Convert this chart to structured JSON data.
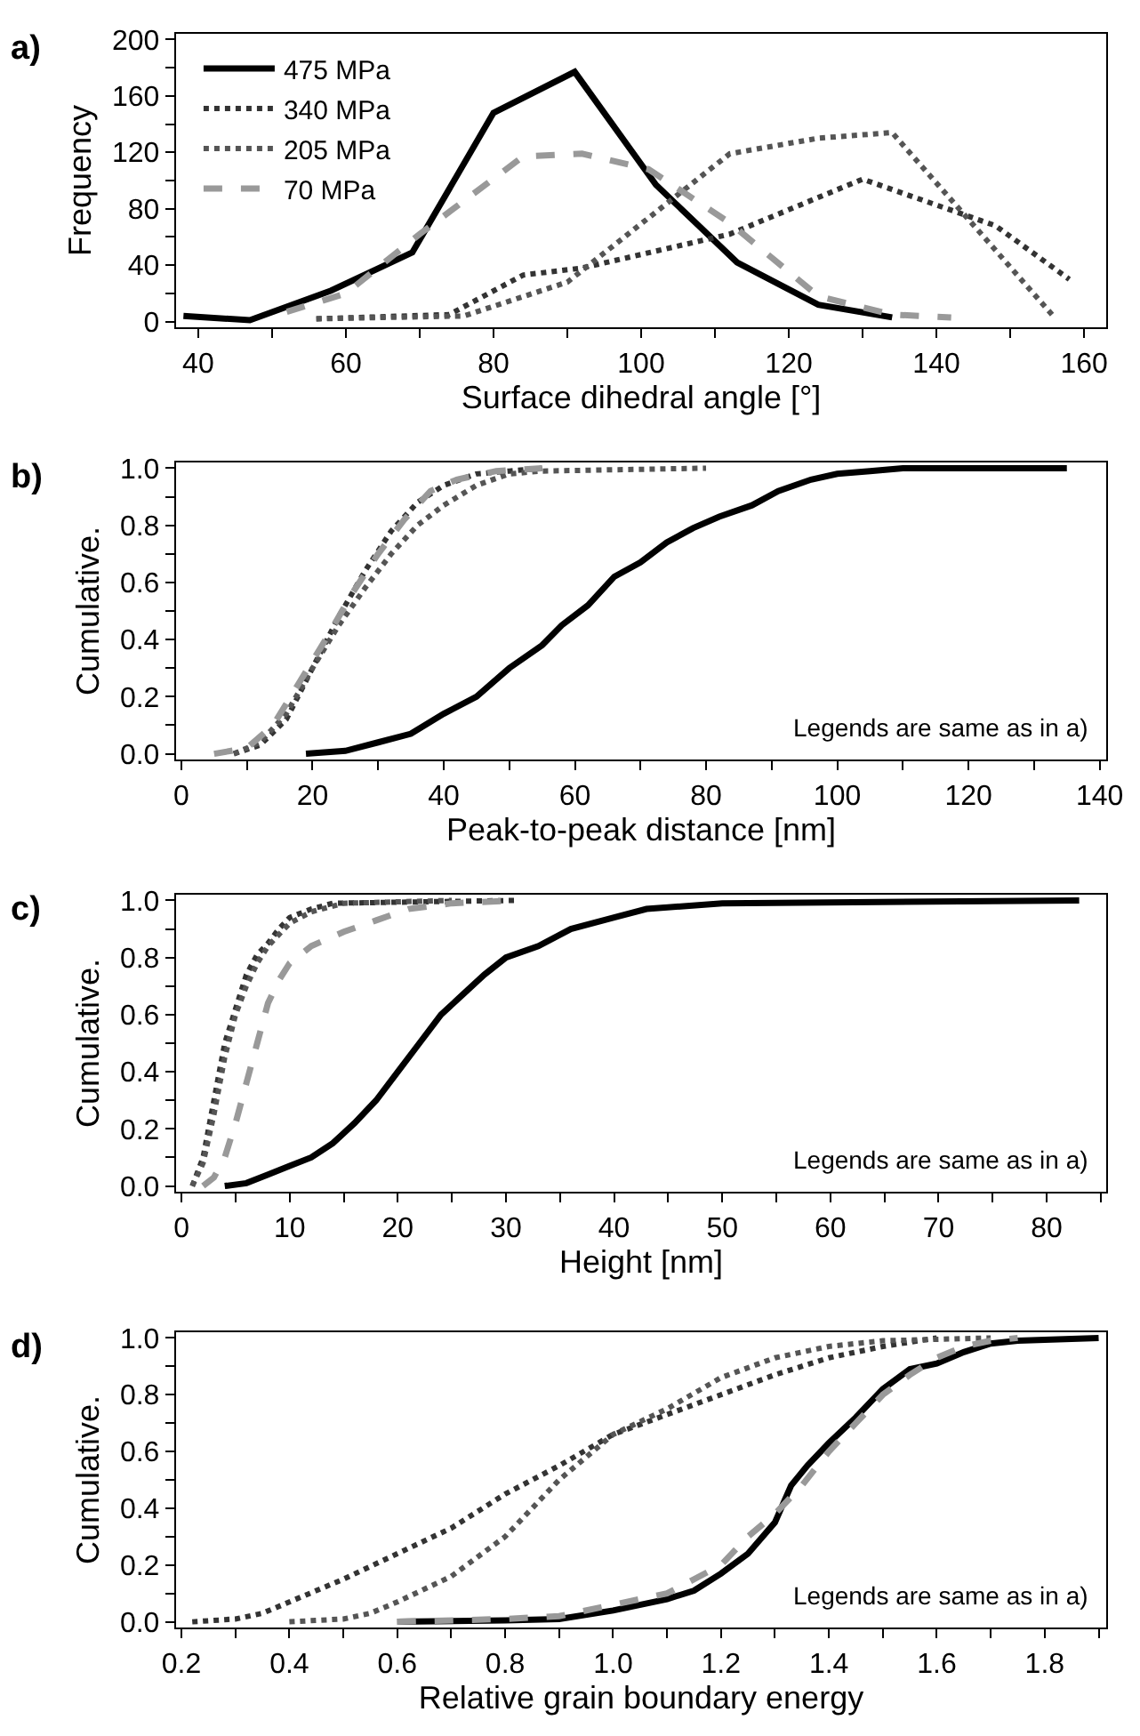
{
  "chart_data": [
    {
      "type": "line",
      "title": "a)",
      "xlabel": "Surface dihedral angle [°]",
      "ylabel": "Frequency",
      "legend": "top left",
      "xlim": [
        37,
        163
      ],
      "xticks": [
        40,
        {
          "value": 50,
          "label": null
        },
        60,
        {
          "value": 70,
          "label": null
        },
        80,
        {
          "value": 90,
          "label": null
        },
        100,
        {
          "value": 110,
          "label": null
        },
        120,
        {
          "value": 130,
          "label": null
        },
        140,
        {
          "value": 150,
          "label": null
        },
        160
      ],
      "ylim": [
        -4,
        204
      ],
      "yticks": [
        0,
        {
          "value": 20,
          "label": null
        },
        40,
        {
          "value": 60,
          "label": null
        },
        80,
        {
          "value": 100,
          "label": null
        },
        120,
        {
          "value": 140,
          "label": null
        },
        160,
        {
          "value": 180,
          "label": null
        },
        200
      ],
      "series": [
        {
          "name": "475 MPa",
          "color": "#000000",
          "line_style": "solid",
          "x": [
            38,
            47,
            58,
            69,
            80,
            91,
            102,
            113,
            124,
            134
          ],
          "values": [
            4,
            1,
            22,
            49,
            148,
            177,
            97,
            42,
            12,
            3
          ]
        },
        {
          "name": "340 MPa",
          "color": "#333333",
          "line_style": "dotted",
          "x": [
            56,
            74,
            84,
            92,
            112,
            130,
            148,
            158
          ],
          "values": [
            2,
            5,
            33,
            38,
            62,
            101,
            68,
            30
          ]
        },
        {
          "name": "205 MPa",
          "color": "#555555",
          "line_style": "dotted",
          "x": [
            56,
            76,
            90,
            112,
            124,
            134,
            156
          ],
          "values": [
            2,
            4,
            28,
            119,
            130,
            134,
            3
          ]
        },
        {
          "name": "70 MPa",
          "color": "#999999",
          "line_style": "dashed",
          "x": [
            52,
            60,
            70,
            84,
            92,
            101,
            112,
            124,
            134,
            142
          ],
          "values": [
            7,
            20,
            62,
            117,
            119,
            108,
            70,
            18,
            5,
            3
          ]
        }
      ]
    },
    {
      "type": "line",
      "title": "b)",
      "xlabel": "Peak-to-peak distance [nm]",
      "ylabel": "Cumulative.",
      "legend": false,
      "annotations": [
        "Legends are same as in a)"
      ],
      "xlim": [
        -0.8,
        141
      ],
      "xticks": [
        0,
        {
          "value": 10,
          "label": null
        },
        20,
        {
          "value": 30,
          "label": null
        },
        40,
        {
          "value": 50,
          "label": null
        },
        60,
        {
          "value": 70,
          "label": null
        },
        80,
        {
          "value": 90,
          "label": null
        },
        100,
        {
          "value": 110,
          "label": null
        },
        120,
        {
          "value": 130,
          "label": null
        },
        140
      ],
      "ylim": [
        -0.02,
        1.02
      ],
      "yticks": [
        {
          "value": 0,
          "label": "0.0"
        },
        {
          "value": 0.1,
          "label": null
        },
        0.2,
        {
          "value": 0.3,
          "label": null
        },
        0.4,
        {
          "value": 0.5,
          "label": null
        },
        0.6,
        {
          "value": 0.7,
          "label": null
        },
        0.8,
        {
          "value": 0.9,
          "label": null
        },
        {
          "value": 1,
          "label": "1.0"
        }
      ],
      "series": [
        {
          "color": "#000000",
          "line_style": "solid",
          "x": [
            19,
            25,
            30,
            35,
            40,
            45,
            50,
            55,
            58,
            62,
            66,
            70,
            74,
            78,
            82,
            87,
            91,
            96,
            100,
            105,
            110,
            135
          ],
          "values": [
            0,
            0.01,
            0.04,
            0.07,
            0.14,
            0.2,
            0.3,
            0.38,
            0.45,
            0.52,
            0.62,
            0.67,
            0.74,
            0.79,
            0.83,
            0.87,
            0.92,
            0.96,
            0.98,
            0.99,
            1.0,
            1.0
          ]
        },
        {
          "color": "#333333",
          "line_style": "dotted",
          "x": [
            8,
            12,
            16,
            20,
            24,
            28,
            32,
            36,
            40,
            45,
            50,
            55
          ],
          "values": [
            0,
            0.03,
            0.12,
            0.3,
            0.48,
            0.64,
            0.78,
            0.88,
            0.94,
            0.98,
            0.99,
            1.0
          ]
        },
        {
          "color": "#555555",
          "line_style": "dotted",
          "x": [
            8,
            12,
            16,
            20,
            24,
            28,
            32,
            36,
            40,
            45,
            50,
            55,
            80
          ],
          "values": [
            0,
            0.04,
            0.14,
            0.3,
            0.45,
            0.58,
            0.7,
            0.8,
            0.87,
            0.94,
            0.98,
            0.99,
            1.0
          ]
        },
        {
          "color": "#999999",
          "line_style": "dashed",
          "x": [
            5,
            10,
            14,
            18,
            22,
            26,
            30,
            34,
            38,
            42,
            48,
            55
          ],
          "values": [
            0,
            0.02,
            0.1,
            0.25,
            0.4,
            0.56,
            0.7,
            0.82,
            0.92,
            0.96,
            0.99,
            1.0
          ]
        }
      ]
    },
    {
      "type": "line",
      "title": "c)",
      "xlabel": "Height [nm]",
      "ylabel": "Cumulative.",
      "legend": false,
      "annotations": [
        "Legends are same as in a)"
      ],
      "xlim": [
        -0.5,
        85.5
      ],
      "xticks": [
        0,
        {
          "value": 5,
          "label": null
        },
        10,
        {
          "value": 15,
          "label": null
        },
        20,
        {
          "value": 25,
          "label": null
        },
        30,
        {
          "value": 35,
          "label": null
        },
        40,
        {
          "value": 45,
          "label": null
        },
        50,
        {
          "value": 55,
          "label": null
        },
        60,
        {
          "value": 65,
          "label": null
        },
        70,
        {
          "value": 75,
          "label": null
        },
        80,
        {
          "value": 85,
          "label": null
        }
      ],
      "ylim": [
        -0.02,
        1.02
      ],
      "yticks": [
        {
          "value": 0,
          "label": "0.0"
        },
        {
          "value": 0.1,
          "label": null
        },
        0.2,
        {
          "value": 0.3,
          "label": null
        },
        0.4,
        {
          "value": 0.5,
          "label": null
        },
        0.6,
        {
          "value": 0.7,
          "label": null
        },
        0.8,
        {
          "value": 0.9,
          "label": null
        },
        {
          "value": 1,
          "label": "1.0"
        }
      ],
      "series": [
        {
          "color": "#000000",
          "line_style": "solid",
          "x": [
            4,
            6,
            8,
            10,
            12,
            14,
            16,
            18,
            20,
            22,
            24,
            26,
            28,
            30,
            33,
            36,
            40,
            43,
            50,
            83
          ],
          "values": [
            0,
            0.01,
            0.04,
            0.07,
            0.1,
            0.15,
            0.22,
            0.3,
            0.4,
            0.5,
            0.6,
            0.67,
            0.74,
            0.8,
            0.84,
            0.9,
            0.94,
            0.97,
            0.99,
            1.0
          ]
        },
        {
          "color": "#333333",
          "line_style": "dotted",
          "x": [
            1,
            2,
            3,
            4,
            5,
            6,
            7,
            8,
            9,
            10,
            12,
            14,
            31
          ],
          "values": [
            0,
            0.1,
            0.3,
            0.5,
            0.62,
            0.74,
            0.81,
            0.85,
            0.9,
            0.94,
            0.97,
            0.99,
            1.0
          ]
        },
        {
          "color": "#555555",
          "line_style": "dotted",
          "x": [
            1,
            2,
            3,
            4,
            5,
            6,
            7,
            8,
            10,
            12,
            15,
            25
          ],
          "values": [
            0,
            0.08,
            0.25,
            0.45,
            0.6,
            0.7,
            0.78,
            0.84,
            0.92,
            0.96,
            0.99,
            1.0
          ]
        },
        {
          "color": "#999999",
          "line_style": "dashed",
          "x": [
            2,
            3,
            4,
            5,
            6,
            7,
            8,
            9,
            10,
            12,
            15,
            18,
            21,
            25,
            31
          ],
          "values": [
            0,
            0.03,
            0.1,
            0.22,
            0.36,
            0.5,
            0.64,
            0.72,
            0.78,
            0.84,
            0.89,
            0.93,
            0.97,
            0.99,
            1.0
          ]
        }
      ]
    },
    {
      "type": "line",
      "title": "d)",
      "xlabel": "Relative grain boundary energy",
      "ylabel": "Cumulative.",
      "legend": false,
      "annotations": [
        "Legends are same as in a)"
      ],
      "xlim": [
        0.19,
        1.914
      ],
      "xticks": [
        0.2,
        {
          "value": 0.3,
          "label": null
        },
        0.4,
        {
          "value": 0.5,
          "label": null
        },
        0.6,
        {
          "value": 0.7,
          "label": null
        },
        0.8,
        {
          "value": 0.9,
          "label": null
        },
        {
          "value": 1.0,
          "label": "1.0"
        },
        {
          "value": 1.1,
          "label": null
        },
        1.2,
        {
          "value": 1.3,
          "label": null
        },
        1.4,
        {
          "value": 1.5,
          "label": null
        },
        1.6,
        {
          "value": 1.7,
          "label": null
        },
        1.8,
        {
          "value": 1.9,
          "label": null
        }
      ],
      "ylim": [
        -0.02,
        1.02
      ],
      "yticks": [
        {
          "value": 0,
          "label": "0.0"
        },
        {
          "value": 0.1,
          "label": null
        },
        0.2,
        {
          "value": 0.3,
          "label": null
        },
        0.4,
        {
          "value": 0.5,
          "label": null
        },
        0.6,
        {
          "value": 0.7,
          "label": null
        },
        0.8,
        {
          "value": 0.9,
          "label": null
        },
        {
          "value": 1,
          "label": "1.0"
        }
      ],
      "series": [
        {
          "color": "#000000",
          "line_style": "solid",
          "x": [
            0.6,
            0.8,
            0.9,
            1.0,
            1.1,
            1.15,
            1.2,
            1.25,
            1.3,
            1.33,
            1.36,
            1.4,
            1.45,
            1.5,
            1.55,
            1.6,
            1.65,
            1.7,
            1.75,
            1.9
          ],
          "values": [
            0,
            0.005,
            0.01,
            0.04,
            0.08,
            0.11,
            0.17,
            0.24,
            0.35,
            0.48,
            0.55,
            0.63,
            0.72,
            0.82,
            0.89,
            0.91,
            0.95,
            0.98,
            0.99,
            1.0
          ]
        },
        {
          "color": "#333333",
          "line_style": "dotted",
          "x": [
            0.22,
            0.3,
            0.35,
            0.4,
            0.5,
            0.6,
            0.7,
            0.8,
            0.9,
            1.0,
            1.1,
            1.2,
            1.3,
            1.4,
            1.5,
            1.6
          ],
          "values": [
            0,
            0.01,
            0.03,
            0.07,
            0.15,
            0.24,
            0.33,
            0.45,
            0.55,
            0.66,
            0.73,
            0.8,
            0.87,
            0.93,
            0.97,
            1.0
          ]
        },
        {
          "color": "#555555",
          "line_style": "dotted",
          "x": [
            0.4,
            0.5,
            0.55,
            0.6,
            0.7,
            0.8,
            0.9,
            1.0,
            1.1,
            1.2,
            1.3,
            1.4,
            1.5,
            1.7
          ],
          "values": [
            0,
            0.01,
            0.03,
            0.07,
            0.16,
            0.3,
            0.5,
            0.66,
            0.75,
            0.86,
            0.93,
            0.97,
            0.99,
            1.0
          ]
        },
        {
          "color": "#999999",
          "line_style": "dashed",
          "x": [
            0.6,
            0.8,
            0.9,
            1.0,
            1.1,
            1.2,
            1.25,
            1.3,
            1.35,
            1.4,
            1.45,
            1.5,
            1.55,
            1.6,
            1.65,
            1.7,
            1.75
          ],
          "values": [
            0,
            0.01,
            0.02,
            0.06,
            0.1,
            0.2,
            0.3,
            0.38,
            0.48,
            0.6,
            0.7,
            0.8,
            0.87,
            0.93,
            0.97,
            0.99,
            1.0
          ]
        }
      ]
    }
  ]
}
